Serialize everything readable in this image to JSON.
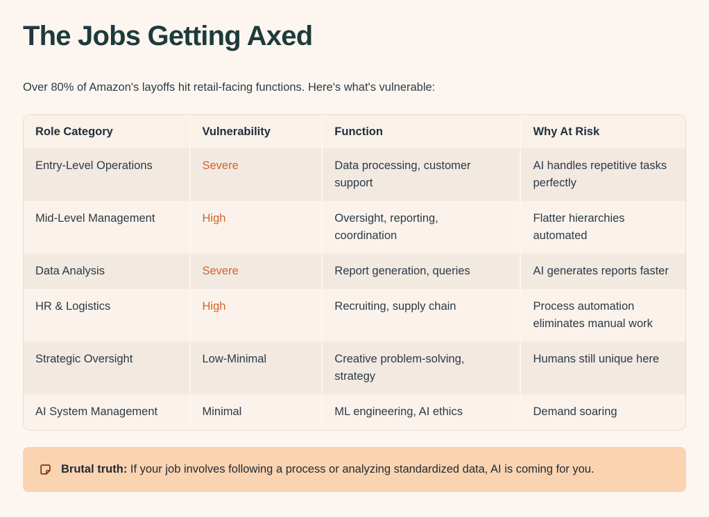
{
  "page": {
    "title": "The Jobs Getting Axed",
    "subtitle": "Over 80% of Amazon's layoffs hit retail-facing functions. Here's what's vulnerable:"
  },
  "table": {
    "columns": [
      "Role Category",
      "Vulnerability",
      "Function",
      "Why At Risk"
    ],
    "rows": [
      {
        "role": "Entry-Level Operations",
        "vulnerability": "Severe",
        "vulnerability_level": "high",
        "function": "Data processing, customer support",
        "why": "AI handles repetitive tasks perfectly"
      },
      {
        "role": "Mid-Level Management",
        "vulnerability": "High",
        "vulnerability_level": "high",
        "function": "Oversight, reporting, coordination",
        "why": "Flatter hierarchies automated"
      },
      {
        "role": "Data Analysis",
        "vulnerability": "Severe",
        "vulnerability_level": "high",
        "function": "Report generation, queries",
        "why": "AI generates reports faster"
      },
      {
        "role": "HR & Logistics",
        "vulnerability": "High",
        "vulnerability_level": "high",
        "function": "Recruiting, supply chain",
        "why": "Process automation eliminates manual work"
      },
      {
        "role": "Strategic Oversight",
        "vulnerability": "Low-Minimal",
        "vulnerability_level": "low",
        "function": "Creative problem-solving, strategy",
        "why": "Humans still unique here"
      },
      {
        "role": "AI System Management",
        "vulnerability": "Minimal",
        "vulnerability_level": "low",
        "function": "ML engineering, AI ethics",
        "why": "Demand soaring"
      }
    ]
  },
  "callout": {
    "icon": "sticky-note-icon",
    "label": "Brutal truth:",
    "text": "If your job involves following a process or analyzing standardized data, AI is coming for you."
  },
  "colors": {
    "page_background": "#fdf6f0",
    "title": "#1e3a3c",
    "accent_orange": "#d2622a",
    "row_shaded": "#f2e9e1",
    "row_plain": "#fbf3eb",
    "header_background": "#faf1e9",
    "callout_background": "#fad3b1",
    "callout_icon": "#7a3a10"
  }
}
